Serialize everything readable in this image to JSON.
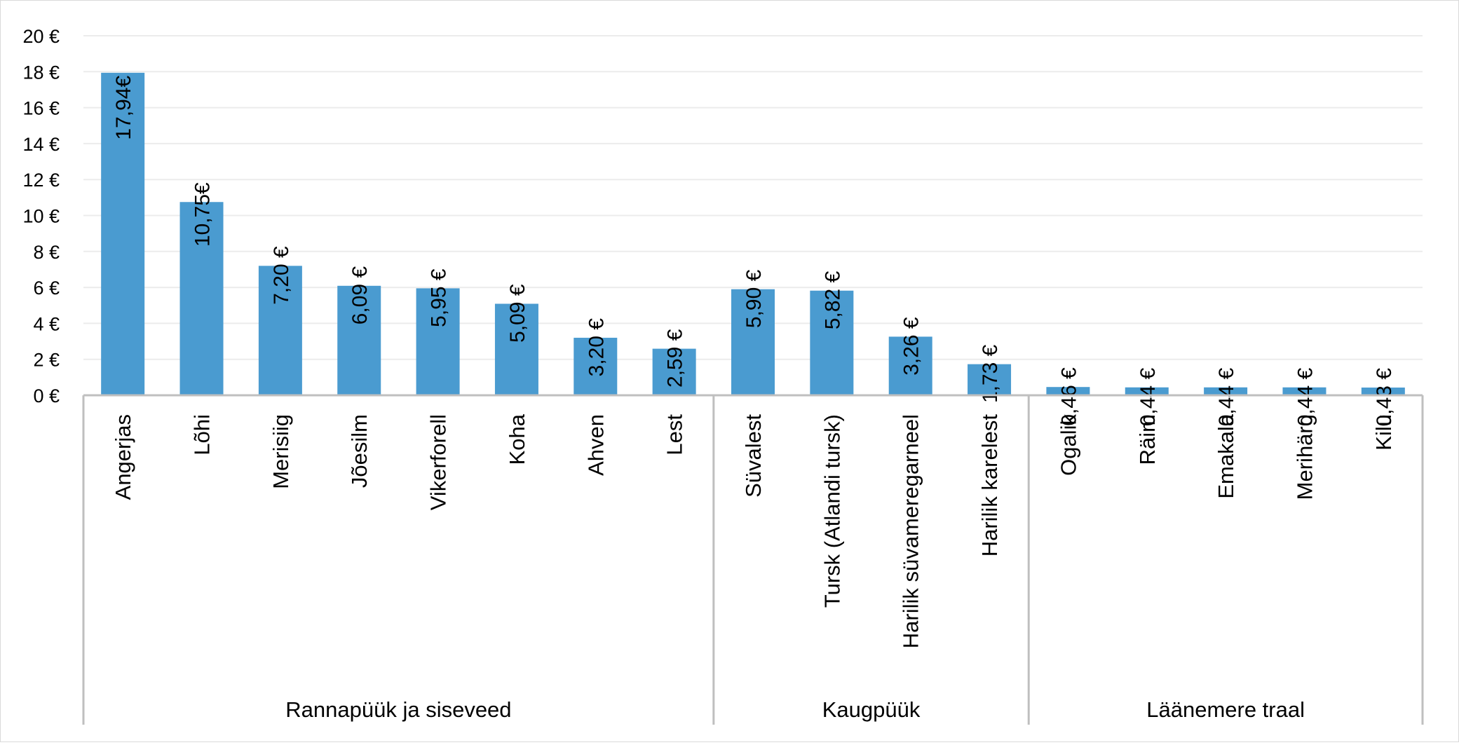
{
  "chart_data": {
    "type": "bar",
    "ylim": [
      0,
      20
    ],
    "yticks": [
      "0 €",
      "2 €",
      "4 €",
      "6 €",
      "8 €",
      "10 €",
      "12 €",
      "14 €",
      "16 €",
      "18 €",
      "20 €"
    ],
    "grid": true,
    "bar_color": "#4a9bd0",
    "categories": [
      "Angerjas",
      "Lõhi",
      "Merisiig",
      "Jõesilm",
      "Vikerforell",
      "Koha",
      "Ahven",
      "Lest",
      "Süvalest",
      "Tursk (Atlandi tursk)",
      "Harilik süvameregarneel",
      "Harilik karelest",
      "Ogalik",
      "Räim",
      "Emakala",
      "Merihärg",
      "Kilu"
    ],
    "values": [
      17.94,
      10.75,
      7.2,
      6.09,
      5.95,
      5.09,
      3.2,
      2.59,
      5.9,
      5.82,
      3.26,
      1.73,
      0.46,
      0.44,
      0.44,
      0.44,
      0.43
    ],
    "data_labels": [
      "17,94€",
      "10,75€",
      "7,20 €",
      "6,09 €",
      "5,95 €",
      "5,09 €",
      "3,20 €",
      "2,59 €",
      "5,90 €",
      "5,82 €",
      "3,26 €",
      "1,73 €",
      "0,46 €",
      "0,44 €",
      "0,44 €",
      "0,44 €",
      "0,43 €"
    ],
    "groups": [
      {
        "name": "Rannapüük ja siseveed",
        "count": 8
      },
      {
        "name": "Kaugpüük",
        "count": 4
      },
      {
        "name": "Läänemere traal",
        "count": 5
      }
    ]
  }
}
